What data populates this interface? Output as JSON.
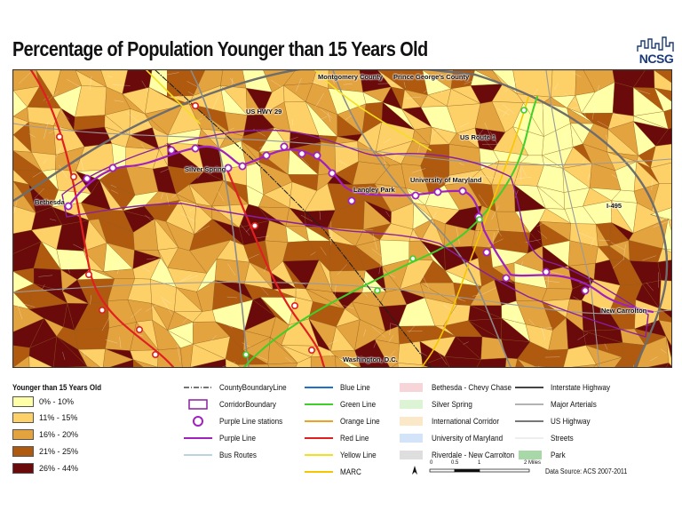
{
  "title": "Percentage of Population Younger than 15 Years Old",
  "logo": {
    "text": "NCSG"
  },
  "map": {
    "place_labels": {
      "montgomery_county": "Montgomery County",
      "prince_georges_county": "Prince George's County",
      "us_hwy_29": "US HWY 29",
      "us_route_1": "US Route 1",
      "silver_spring": "Silver Spring",
      "langley_park": "Langley Park",
      "university_of_maryland": "University of Maryland",
      "bethesda": "Bethesda",
      "i_495": "I-495",
      "new_carrolton": "New Carrolton",
      "washington_dc": "Washington, D.C."
    },
    "class_colors": [
      "#ffffa8",
      "#fdd068",
      "#e3a33f",
      "#b05a10",
      "#6a0a0a"
    ]
  },
  "legend": {
    "title": "Younger than 15 Years Old",
    "classes": [
      {
        "label": "0% - 10%",
        "color": "#ffffa8"
      },
      {
        "label": "11% - 15%",
        "color": "#fdd068"
      },
      {
        "label": "16% - 20%",
        "color": "#e3a33f"
      },
      {
        "label": "21% - 25%",
        "color": "#b05a10"
      },
      {
        "label": "26% - 44%",
        "color": "#6a0a0a"
      }
    ],
    "col1": [
      {
        "label": "CountyBoundaryLine",
        "symbol": "dashdot"
      },
      {
        "label": "CorridorBoundary",
        "symbol": "box"
      },
      {
        "label": "Purple Line stations",
        "symbol": "circle"
      },
      {
        "label": "Purple Line",
        "symbol": "line",
        "color": "#a020c0"
      },
      {
        "label": "Bus Routes",
        "symbol": "line",
        "color": "#b8d4e0"
      }
    ],
    "col2": [
      {
        "label": "Blue Line",
        "color": "#1f6fd0"
      },
      {
        "label": "Green Line",
        "color": "#3ecf2a"
      },
      {
        "label": "Orange Line",
        "color": "#f0a020"
      },
      {
        "label": "Red Line",
        "color": "#e02020"
      },
      {
        "label": "Yellow Line",
        "color": "#f2e020"
      },
      {
        "label": "MARC",
        "color": "#f4c800"
      }
    ],
    "col3": [
      {
        "label": "Bethesda - Chevy Chase",
        "color": "#f6d4d8"
      },
      {
        "label": "Silver Spring",
        "color": "#dcf4d4"
      },
      {
        "label": "International Corridor",
        "color": "#fbe8c8"
      },
      {
        "label": "University of Maryland",
        "color": "#d4e4f8"
      },
      {
        "label": "Riverdale - New Carrolton",
        "color": "#dedede"
      }
    ],
    "col4": [
      {
        "label": "Interstate Highway",
        "color": "#444444",
        "w": 2
      },
      {
        "label": "Major Arterials",
        "color": "#999999",
        "w": 1.5
      },
      {
        "label": "US Highway",
        "color": "#777777",
        "w": 2
      },
      {
        "label": "Streets",
        "color": "#dddddd",
        "w": 1
      },
      {
        "label": "Park",
        "color": "#a8d8a8",
        "box": true
      }
    ],
    "scale": {
      "ticks": [
        "0",
        "0.5",
        "1",
        "2 Miles"
      ]
    },
    "source": "Data Source: ACS 2007-2011"
  }
}
